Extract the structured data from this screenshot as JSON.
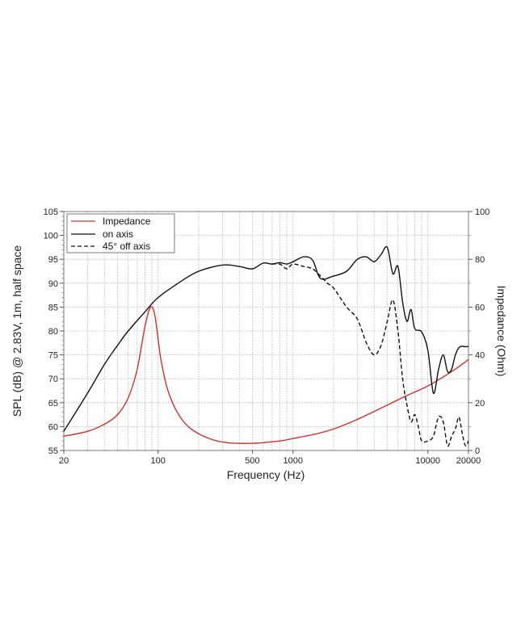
{
  "chart_data": {
    "type": "line",
    "title": "",
    "xlabel": "Frequency (Hz)",
    "ylabel": "SPL (dB) @ 2.83V, 1m, half space",
    "y2label": "Impedance (Ohm)",
    "xscale": "log",
    "xlim": [
      20,
      20000
    ],
    "ylim": [
      55,
      105
    ],
    "y2lim": [
      0,
      100
    ],
    "grid": true,
    "legend_position": "upper left",
    "x_tick_labels": [
      "20",
      "100",
      "500",
      "1000",
      "10000",
      "20000"
    ],
    "x_tick_values": [
      20,
      100,
      500,
      1000,
      10000,
      20000
    ],
    "y_tick_labels": [
      "55",
      "60",
      "65",
      "70",
      "75",
      "80",
      "85",
      "90",
      "95",
      "100",
      "105"
    ],
    "y2_tick_labels": [
      "0",
      "20",
      "40",
      "60",
      "80",
      "100"
    ],
    "series": [
      {
        "name": "Impedance",
        "axis": "right",
        "color": "#d0312d",
        "style": "solid",
        "x": [
          20,
          30,
          40,
          50,
          60,
          70,
          80,
          88,
          95,
          105,
          120,
          150,
          200,
          300,
          500,
          800,
          1000,
          1500,
          2000,
          3000,
          5000,
          7000,
          10000,
          15000,
          20000
        ],
        "values": [
          6,
          8,
          11,
          15,
          22,
          34,
          52,
          60,
          56,
          38,
          24,
          13,
          7,
          3.5,
          3,
          4,
          5,
          7,
          9,
          13,
          19,
          23,
          27,
          33,
          38
        ]
      },
      {
        "name": "on axis",
        "axis": "left",
        "color": "#111111",
        "style": "solid",
        "x": [
          20,
          30,
          40,
          50,
          60,
          80,
          100,
          150,
          200,
          300,
          400,
          500,
          600,
          700,
          800,
          900,
          1000,
          1200,
          1400,
          1600,
          2000,
          2500,
          3000,
          3500,
          4000,
          4500,
          5000,
          5500,
          6000,
          6500,
          7000,
          7500,
          8000,
          9000,
          10000,
          11000,
          12000,
          13000,
          14000,
          15000,
          16000,
          17000,
          18000,
          19000,
          20000
        ],
        "values": [
          59,
          67,
          73,
          77,
          80,
          84,
          87,
          90.5,
          92.5,
          93.8,
          93.5,
          93,
          94.2,
          94,
          94.3,
          94,
          94.5,
          95.5,
          94.8,
          91,
          91.5,
          92.5,
          95,
          95.5,
          94.5,
          96,
          97.5,
          92,
          93.5,
          86,
          82,
          84.5,
          80.5,
          79.8,
          76,
          67,
          72,
          75,
          71.5,
          72,
          75,
          76.5,
          76.8,
          76.7,
          76.8
        ]
      },
      {
        "name": "45° off axis",
        "axis": "left",
        "color": "#111111",
        "style": "dashed",
        "x": [
          700,
          800,
          900,
          1000,
          1200,
          1400,
          1600,
          1800,
          2000,
          2500,
          3000,
          3500,
          4000,
          4500,
          5000,
          5500,
          6000,
          6500,
          7000,
          7500,
          8000,
          8500,
          9000,
          10000,
          11000,
          12000,
          13000,
          14000,
          15000,
          16000,
          17000,
          18000,
          19000,
          20000
        ],
        "values": [
          94,
          94,
          93,
          94,
          93.5,
          93,
          91.5,
          90,
          89,
          85,
          82.5,
          77.5,
          75,
          77,
          82,
          86.5,
          80,
          70,
          64.5,
          61,
          62.5,
          60,
          57,
          57,
          58,
          62,
          61,
          56,
          58,
          59.5,
          62,
          58.5,
          56,
          57
        ]
      }
    ]
  },
  "labels": {
    "xlabel": "Frequency (Hz)",
    "ylabel": "SPL (dB) @ 2.83V, 1m, half space",
    "y2label": "Impedance (Ohm)"
  },
  "legend": [
    {
      "label": "Impedance",
      "color": "#d0312d",
      "style": "solid"
    },
    {
      "label": "on axis",
      "color": "#111111",
      "style": "solid"
    },
    {
      "label": "45° off axis",
      "color": "#111111",
      "style": "dashed"
    }
  ]
}
